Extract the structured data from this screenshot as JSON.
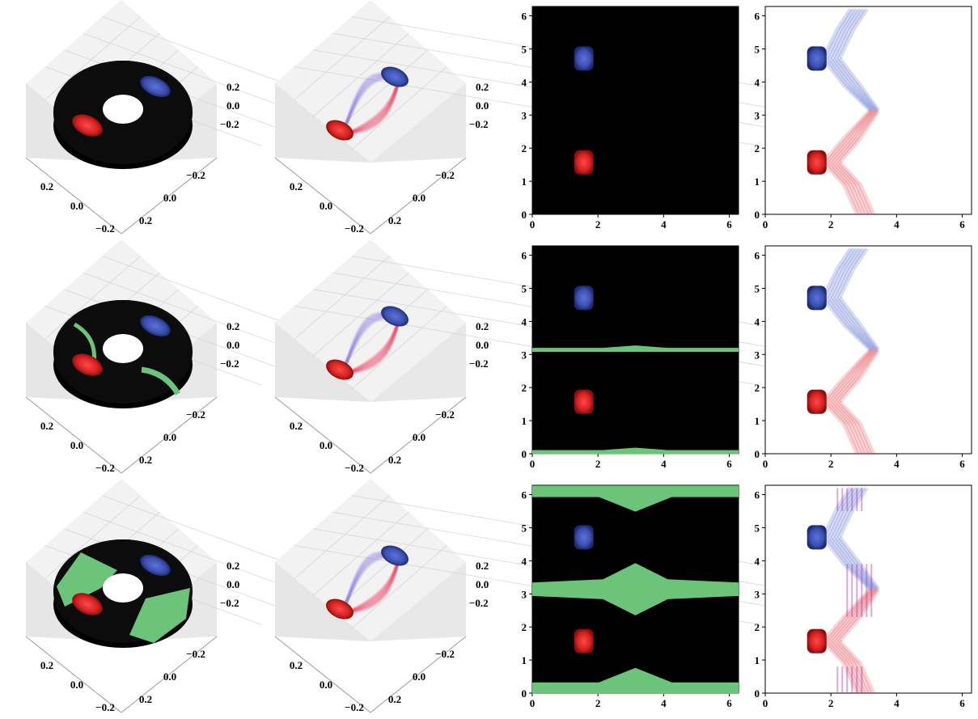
{
  "figure": {
    "rows": 3,
    "columns": [
      "torus-3d-view",
      "trajectory-3d-view",
      "flat-map-heatmap",
      "flat-map-trajectories"
    ]
  },
  "colors": {
    "red_blob": "#d42020",
    "blue_blob": "#3a4fb0",
    "green_region": "#6cc47a",
    "torus": "#0c0c0c",
    "pane_gray": "#ececec"
  },
  "chart_data": [
    {
      "type": "scatter",
      "panel": "row1-3d-torus",
      "view": "3d",
      "z_ticks": [
        "0.2",
        "0.0",
        "−0.2"
      ],
      "x_ticks": [
        "0.2",
        "0.0",
        "−0.2"
      ],
      "y_ticks": [
        "−0.2",
        "0.0",
        "0.2"
      ],
      "blobs": [
        {
          "color": "red"
        },
        {
          "color": "blue"
        }
      ],
      "green_region": "none"
    },
    {
      "type": "line",
      "panel": "row1-3d-traj",
      "view": "3d",
      "z_ticks": [
        "0.2",
        "0.0",
        "−0.2"
      ],
      "x_ticks": [
        "0.2",
        "0.0",
        "−0.2"
      ],
      "y_ticks": [
        "−0.2",
        "0.0",
        "0.2"
      ]
    },
    {
      "type": "heatmap",
      "panel": "row1-map",
      "xlim": [
        0,
        6.2832
      ],
      "ylim": [
        0,
        6.2832
      ],
      "x_ticks": [
        "0",
        "2",
        "4",
        "6"
      ],
      "y_ticks": [
        "0",
        "1",
        "2",
        "3",
        "4",
        "5",
        "6"
      ],
      "blobs": [
        {
          "color": "blue",
          "x": 1.57,
          "y": 4.71
        },
        {
          "color": "red",
          "x": 1.57,
          "y": 1.57
        }
      ],
      "green_bands": []
    },
    {
      "type": "line",
      "panel": "row1-traj",
      "xlim": [
        0,
        6.2832
      ],
      "ylim": [
        0,
        6.2832
      ],
      "x_ticks": [
        "0",
        "2",
        "4",
        "6"
      ],
      "y_ticks": [
        "0",
        "1",
        "2",
        "3",
        "4",
        "5",
        "6"
      ],
      "blobs": [
        {
          "color": "blue",
          "x": 1.57,
          "y": 4.71
        },
        {
          "color": "red",
          "x": 1.57,
          "y": 1.57
        }
      ]
    },
    {
      "type": "scatter",
      "panel": "row2-3d-torus",
      "view": "3d",
      "z_ticks": [
        "0.2",
        "0.0",
        "−0.2"
      ],
      "x_ticks": [
        "0.2",
        "0.0",
        "−0.2"
      ],
      "y_ticks": [
        "−0.2",
        "0.0",
        "0.2"
      ],
      "blobs": [
        {
          "color": "red"
        },
        {
          "color": "blue"
        }
      ],
      "green_region": "thin-band"
    },
    {
      "type": "line",
      "panel": "row2-3d-traj",
      "view": "3d",
      "z_ticks": [
        "0.2",
        "0.0",
        "−0.2"
      ],
      "x_ticks": [
        "0.2",
        "0.0",
        "−0.2"
      ],
      "y_ticks": [
        "−0.2",
        "0.0",
        "0.2"
      ]
    },
    {
      "type": "heatmap",
      "panel": "row2-map",
      "xlim": [
        0,
        6.2832
      ],
      "ylim": [
        0,
        6.2832
      ],
      "x_ticks": [
        "0",
        "2",
        "4",
        "6"
      ],
      "y_ticks": [
        "0",
        "1",
        "2",
        "3",
        "4",
        "5",
        "6"
      ],
      "blobs": [
        {
          "color": "blue",
          "x": 1.57,
          "y": 4.71
        },
        {
          "color": "red",
          "x": 1.57,
          "y": 1.57
        }
      ],
      "green_bands": [
        {
          "y_center": 3.14,
          "thickness": 0.12
        },
        {
          "y_center": 0.05,
          "thickness": 0.12
        }
      ]
    },
    {
      "type": "line",
      "panel": "row2-traj",
      "xlim": [
        0,
        6.2832
      ],
      "ylim": [
        0,
        6.2832
      ],
      "x_ticks": [
        "0",
        "2",
        "4",
        "6"
      ],
      "y_ticks": [
        "0",
        "1",
        "2",
        "3",
        "4",
        "5",
        "6"
      ],
      "blobs": [
        {
          "color": "blue",
          "x": 1.57,
          "y": 4.71
        },
        {
          "color": "red",
          "x": 1.57,
          "y": 1.57
        }
      ]
    },
    {
      "type": "scatter",
      "panel": "row3-3d-torus",
      "view": "3d",
      "z_ticks": [
        "0.2",
        "0.0",
        "−0.2"
      ],
      "x_ticks": [
        "0.2",
        "0.0",
        "−0.2"
      ],
      "y_ticks": [
        "−0.2",
        "0.0",
        "0.2"
      ],
      "blobs": [
        {
          "color": "red"
        },
        {
          "color": "blue"
        }
      ],
      "green_region": "large"
    },
    {
      "type": "line",
      "panel": "row3-3d-traj",
      "view": "3d",
      "z_ticks": [
        "0.2",
        "0.0",
        "−0.2"
      ],
      "x_ticks": [
        "0.2",
        "0.0",
        "−0.2"
      ],
      "y_ticks": [
        "−0.2",
        "0.0",
        "0.2"
      ]
    },
    {
      "type": "heatmap",
      "panel": "row3-map",
      "xlim": [
        0,
        6.2832
      ],
      "ylim": [
        0,
        6.2832
      ],
      "x_ticks": [
        "0",
        "2",
        "4",
        "6"
      ],
      "y_ticks": [
        "0",
        "1",
        "2",
        "3",
        "4",
        "5",
        "6"
      ],
      "blobs": [
        {
          "color": "blue",
          "x": 1.57,
          "y": 4.71
        },
        {
          "color": "red",
          "x": 1.57,
          "y": 1.57
        }
      ],
      "green_bands": [
        {
          "y_center": 6.1,
          "thickness": 0.35
        },
        {
          "y_center": 3.14,
          "thickness": 0.7
        },
        {
          "y_center": 0.15,
          "thickness": 0.35
        }
      ]
    },
    {
      "type": "line",
      "panel": "row3-traj",
      "xlim": [
        0,
        6.2832
      ],
      "ylim": [
        0,
        6.2832
      ],
      "x_ticks": [
        "0",
        "2",
        "4",
        "6"
      ],
      "y_ticks": [
        "0",
        "1",
        "2",
        "3",
        "4",
        "5",
        "6"
      ],
      "blobs": [
        {
          "color": "blue",
          "x": 1.57,
          "y": 4.71
        },
        {
          "color": "red",
          "x": 1.57,
          "y": 1.57
        }
      ]
    }
  ]
}
